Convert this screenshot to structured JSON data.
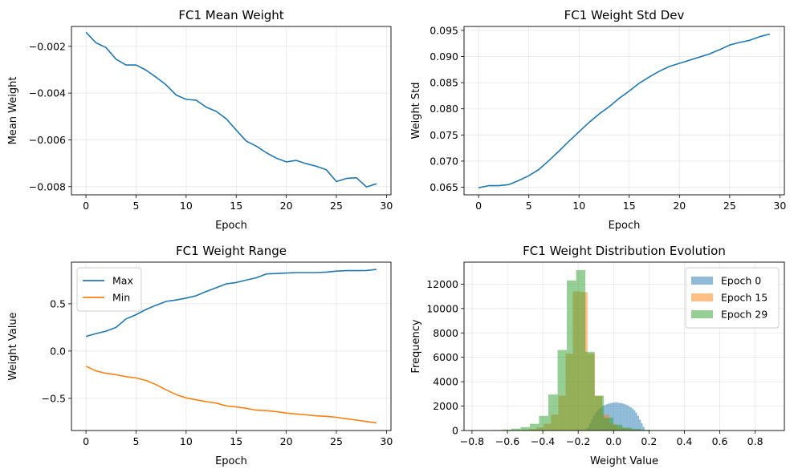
{
  "chart_data": [
    {
      "type": "line",
      "title": "FC1 Mean Weight",
      "xlabel": "Epoch",
      "ylabel": "Mean Weight",
      "xlim": [
        -1.45,
        30.45
      ],
      "ylim": [
        -0.00835,
        -0.00115
      ],
      "xticks": [
        0,
        5,
        10,
        15,
        20,
        25,
        30
      ],
      "yticks": [
        -0.008,
        -0.006,
        -0.004,
        -0.002
      ],
      "ytick_labels": [
        "−0.008",
        "−0.006",
        "−0.004",
        "−0.002"
      ],
      "grid": true,
      "x": [
        0,
        1,
        2,
        3,
        4,
        5,
        6,
        7,
        8,
        9,
        10,
        11,
        12,
        13,
        14,
        15,
        16,
        17,
        18,
        19,
        20,
        21,
        22,
        23,
        24,
        25,
        26,
        27,
        28,
        29
      ],
      "series": [
        {
          "color": "#1f77b4",
          "values": [
            -0.0014,
            -0.00185,
            -0.00205,
            -0.00255,
            -0.0028,
            -0.0028,
            -0.00302,
            -0.00332,
            -0.00365,
            -0.00408,
            -0.00427,
            -0.0043,
            -0.0046,
            -0.00478,
            -0.0051,
            -0.00558,
            -0.00605,
            -0.00627,
            -0.00655,
            -0.00678,
            -0.00694,
            -0.00688,
            -0.00702,
            -0.00713,
            -0.00728,
            -0.00778,
            -0.00765,
            -0.00762,
            -0.00801,
            -0.00788
          ]
        }
      ]
    },
    {
      "type": "line",
      "title": "FC1 Weight Std Dev",
      "xlabel": "Epoch",
      "ylabel": "Weight Std",
      "xlim": [
        -1.45,
        30.45
      ],
      "ylim": [
        0.06355,
        0.09575
      ],
      "xticks": [
        0,
        5,
        10,
        15,
        20,
        25,
        30
      ],
      "yticks": [
        0.065,
        0.07,
        0.075,
        0.08,
        0.085,
        0.09,
        0.095
      ],
      "ytick_labels": [
        "0.065",
        "0.070",
        "0.075",
        "0.080",
        "0.085",
        "0.090",
        "0.095"
      ],
      "grid": true,
      "x": [
        0,
        1,
        2,
        3,
        4,
        5,
        6,
        7,
        8,
        9,
        10,
        11,
        12,
        13,
        14,
        15,
        16,
        17,
        18,
        19,
        20,
        21,
        22,
        23,
        24,
        25,
        26,
        27,
        28,
        29
      ],
      "series": [
        {
          "color": "#1f77b4",
          "values": [
            0.0649,
            0.0653,
            0.0653,
            0.0655,
            0.0663,
            0.0672,
            0.0684,
            0.0701,
            0.0719,
            0.0738,
            0.0756,
            0.0774,
            0.079,
            0.0804,
            0.082,
            0.0834,
            0.0849,
            0.0861,
            0.0872,
            0.0881,
            0.0887,
            0.0893,
            0.0899,
            0.0905,
            0.0913,
            0.0922,
            0.0927,
            0.0931,
            0.0938,
            0.0943
          ]
        }
      ]
    },
    {
      "type": "line",
      "title": "FC1 Weight Range",
      "xlabel": "Epoch",
      "ylabel": "Weight Value",
      "xlim": [
        -1.45,
        30.45
      ],
      "ylim": [
        -0.84,
        0.94
      ],
      "xticks": [
        0,
        5,
        10,
        15,
        20,
        25,
        30
      ],
      "yticks": [
        -0.5,
        0.0,
        0.5
      ],
      "ytick_labels": [
        "−0.5",
        "0.0",
        "0.5"
      ],
      "grid": true,
      "legend": "upper-left",
      "x": [
        0,
        1,
        2,
        3,
        4,
        5,
        6,
        7,
        8,
        9,
        10,
        11,
        12,
        13,
        14,
        15,
        16,
        17,
        18,
        19,
        20,
        21,
        22,
        23,
        24,
        25,
        26,
        27,
        28,
        29
      ],
      "series": [
        {
          "name": "Max",
          "color": "#1f77b4",
          "values": [
            0.155,
            0.185,
            0.21,
            0.25,
            0.34,
            0.385,
            0.44,
            0.485,
            0.525,
            0.54,
            0.56,
            0.585,
            0.63,
            0.67,
            0.71,
            0.725,
            0.75,
            0.775,
            0.815,
            0.82,
            0.825,
            0.83,
            0.83,
            0.83,
            0.835,
            0.845,
            0.85,
            0.85,
            0.852,
            0.863
          ]
        },
        {
          "name": "Min",
          "color": "#ff7f0e",
          "values": [
            -0.16,
            -0.21,
            -0.235,
            -0.25,
            -0.27,
            -0.285,
            -0.31,
            -0.355,
            -0.41,
            -0.46,
            -0.495,
            -0.515,
            -0.535,
            -0.55,
            -0.58,
            -0.59,
            -0.605,
            -0.625,
            -0.63,
            -0.64,
            -0.655,
            -0.665,
            -0.675,
            -0.685,
            -0.69,
            -0.7,
            -0.715,
            -0.73,
            -0.745,
            -0.76
          ]
        }
      ]
    },
    {
      "type": "histogram",
      "title": "FC1 Weight Distribution Evolution",
      "xlabel": "Weight Value",
      "ylabel": "Frequency",
      "xlim": [
        -0.845,
        0.965
      ],
      "ylim": [
        0,
        13800
      ],
      "xticks": [
        -0.8,
        -0.6,
        -0.4,
        -0.2,
        0.0,
        0.2,
        0.4,
        0.6,
        0.8
      ],
      "xtick_labels": [
        "−0.8",
        "−0.6",
        "−0.4",
        "−0.2",
        "0.0",
        "0.2",
        "0.4",
        "0.6",
        "0.8"
      ],
      "yticks": [
        0,
        2000,
        4000,
        6000,
        8000,
        10000,
        12000
      ],
      "grid": true,
      "legend": "upper-right",
      "series": [
        {
          "name": "Epoch 0",
          "color": "#1f77b4",
          "opacity": 0.5,
          "bin_width": 0.0104,
          "bins_start": -0.158,
          "counts": [
            150,
            300,
            600,
            900,
            1200,
            1450,
            1650,
            1800,
            1900,
            2000,
            2080,
            2150,
            2200,
            2240,
            2270,
            2290,
            2300,
            2290,
            2270,
            2240,
            2200,
            2150,
            2080,
            2000,
            1900,
            1800,
            1650,
            1450,
            1200,
            900,
            600,
            300
          ]
        },
        {
          "name": "Epoch 15",
          "color": "#ff7f0e",
          "opacity": 0.5,
          "bin_width": 0.0413,
          "bins_start": -0.56,
          "counts": [
            30,
            60,
            120,
            250,
            550,
            1300,
            2850,
            6300,
            11400,
            11350,
            6300,
            2850,
            1300,
            550,
            250,
            120,
            60,
            30
          ]
        },
        {
          "name": "Epoch 29",
          "color": "#2ca02c",
          "opacity": 0.5,
          "bin_width": 0.0523,
          "bins_start": -0.787,
          "counts": [
            10,
            20,
            40,
            80,
            150,
            280,
            550,
            1200,
            2950,
            6600,
            12300,
            13150,
            6450,
            2850,
            1050,
            480,
            230,
            120,
            60,
            30,
            15,
            8,
            4,
            3,
            2,
            1,
            1,
            1,
            1,
            1,
            1,
            1,
            1
          ]
        }
      ]
    }
  ]
}
